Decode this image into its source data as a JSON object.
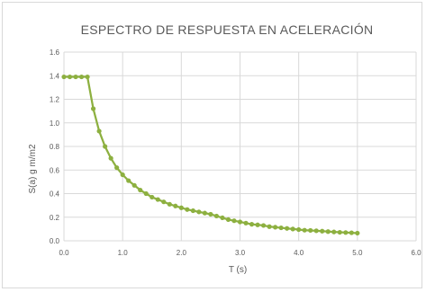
{
  "chart_data": {
    "type": "line",
    "title": "ESPECTRO DE RESPUESTA EN ACELERACIÓN",
    "xlabel": "T (s)",
    "ylabel": "S(a) g m/m2",
    "xlim": [
      0.0,
      6.0
    ],
    "ylim": [
      0.0,
      1.6
    ],
    "xticks": [
      "0.0",
      "1.0",
      "2.0",
      "3.0",
      "4.0",
      "5.0",
      "6.0"
    ],
    "yticks": [
      "0.0",
      "0.2",
      "0.4",
      "0.6",
      "0.8",
      "1.0",
      "1.2",
      "1.4",
      "1.6"
    ],
    "grid": true,
    "legend": "none",
    "colors": {
      "line": "#8db040",
      "marker": "#8db040",
      "grid": "#d9d9d9"
    },
    "series": [
      {
        "x": [
          0.0,
          0.1,
          0.2,
          0.3,
          0.4,
          0.5,
          0.6,
          0.7,
          0.8,
          0.9,
          1.0,
          1.1,
          1.2,
          1.3,
          1.4,
          1.5,
          1.6,
          1.7,
          1.8,
          1.9,
          2.0,
          2.1,
          2.2,
          2.3,
          2.4,
          2.5,
          2.6,
          2.7,
          2.8,
          2.9,
          3.0,
          3.1,
          3.2,
          3.3,
          3.4,
          3.5,
          3.6,
          3.7,
          3.8,
          3.9,
          4.0,
          4.1,
          4.2,
          4.3,
          4.4,
          4.5,
          4.6,
          4.7,
          4.8,
          4.9,
          5.0
        ],
        "values": [
          1.39,
          1.39,
          1.39,
          1.39,
          1.39,
          1.12,
          0.93,
          0.8,
          0.7,
          0.62,
          0.56,
          0.51,
          0.47,
          0.43,
          0.4,
          0.37,
          0.35,
          0.33,
          0.31,
          0.295,
          0.28,
          0.265,
          0.255,
          0.245,
          0.235,
          0.225,
          0.21,
          0.195,
          0.18,
          0.17,
          0.16,
          0.15,
          0.14,
          0.135,
          0.13,
          0.12,
          0.115,
          0.11,
          0.105,
          0.1,
          0.095,
          0.09,
          0.088,
          0.085,
          0.082,
          0.078,
          0.075,
          0.072,
          0.07,
          0.068,
          0.065
        ]
      }
    ]
  }
}
